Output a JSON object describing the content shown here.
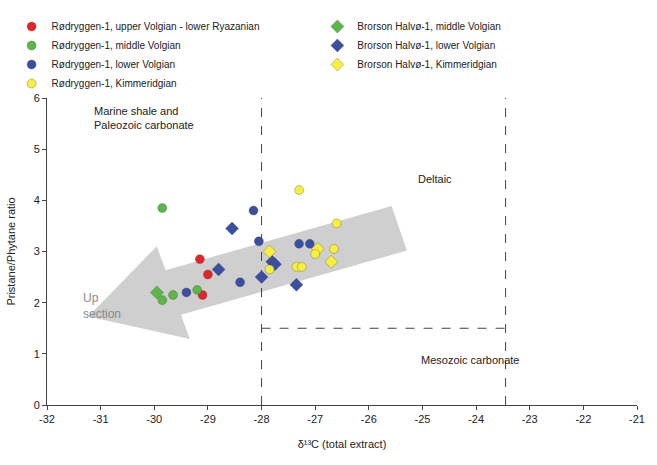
{
  "chart_data": {
    "type": "scatter",
    "x_label": "δ¹³C (total extract)",
    "y_label": "Pristane/Phytane ratio",
    "xlim": [
      -32,
      -21
    ],
    "xticks": [
      -32,
      -31,
      -30,
      -29,
      -28,
      -27,
      -26,
      -25,
      -24,
      -23,
      -22,
      -21
    ],
    "ylim": [
      0,
      6
    ],
    "yticks": [
      0,
      1,
      2,
      3,
      4,
      5,
      6
    ],
    "grid": false,
    "legend": "top",
    "series": [
      {
        "name": "Rødryggen-1, upper Volgian - lower Ryazanian",
        "color": "#e5242a",
        "marker": "circle",
        "x": [
          -29.15,
          -29.0,
          -29.1
        ],
        "values": [
          2.85,
          2.55,
          2.15
        ]
      },
      {
        "name": "Brorson Halvø-1, middle Volgian",
        "color": "#5ab946",
        "marker": "diamond",
        "x": [
          -29.95
        ],
        "values": [
          2.2
        ]
      },
      {
        "name": "Rødryggen-1, middle Volgian",
        "color": "#5ab946",
        "marker": "circle",
        "x": [
          -29.85,
          -29.85,
          -29.65,
          -29.2
        ],
        "values": [
          3.85,
          2.05,
          2.15,
          2.25
        ]
      },
      {
        "name": "Brorson Halvø-1, lower Volgian",
        "color": "#3a4fa3",
        "marker": "diamond",
        "x": [
          -28.55,
          -28.8,
          -28.0,
          -27.8,
          -27.75,
          -27.35
        ],
        "values": [
          3.45,
          2.65,
          2.5,
          2.8,
          2.75,
          2.35
        ]
      },
      {
        "name": "Rødryggen-1, lower Volgian",
        "color": "#3a4fa3",
        "marker": "circle",
        "x": [
          -29.4,
          -28.15,
          -28.05,
          -28.4,
          -27.3,
          -27.1
        ],
        "values": [
          2.2,
          3.8,
          3.2,
          2.4,
          3.15,
          3.15
        ]
      },
      {
        "name": "Brorson Halvø-1, Kimmeridgian",
        "color": "#f8ef3c",
        "marker": "diamond",
        "x": [
          -27.85,
          -26.95,
          -26.7
        ],
        "values": [
          3.0,
          3.05,
          2.8
        ]
      },
      {
        "name": "Rødryggen-1, Kimmeridgian",
        "color": "#f8ef3c",
        "marker": "circle",
        "x": [
          -27.3,
          -26.6,
          -26.65,
          -27.0,
          -27.35,
          -27.25,
          -27.85
        ],
        "values": [
          4.2,
          3.55,
          3.05,
          2.95,
          2.7,
          2.7,
          2.65
        ]
      }
    ],
    "boundaries": [
      {
        "x": [
          -28,
          -28
        ],
        "y": [
          0,
          6
        ]
      },
      {
        "x": [
          -23.45,
          -23.45
        ],
        "y": [
          0,
          6
        ]
      },
      {
        "x": [
          -28,
          -23.45
        ],
        "y": [
          1.5,
          1.5
        ]
      }
    ],
    "annotations": [
      "Marine shale and\nPaleozoic carbonate",
      "Deltaic",
      "Mesozoic carbonate",
      "Up\nsection"
    ]
  }
}
